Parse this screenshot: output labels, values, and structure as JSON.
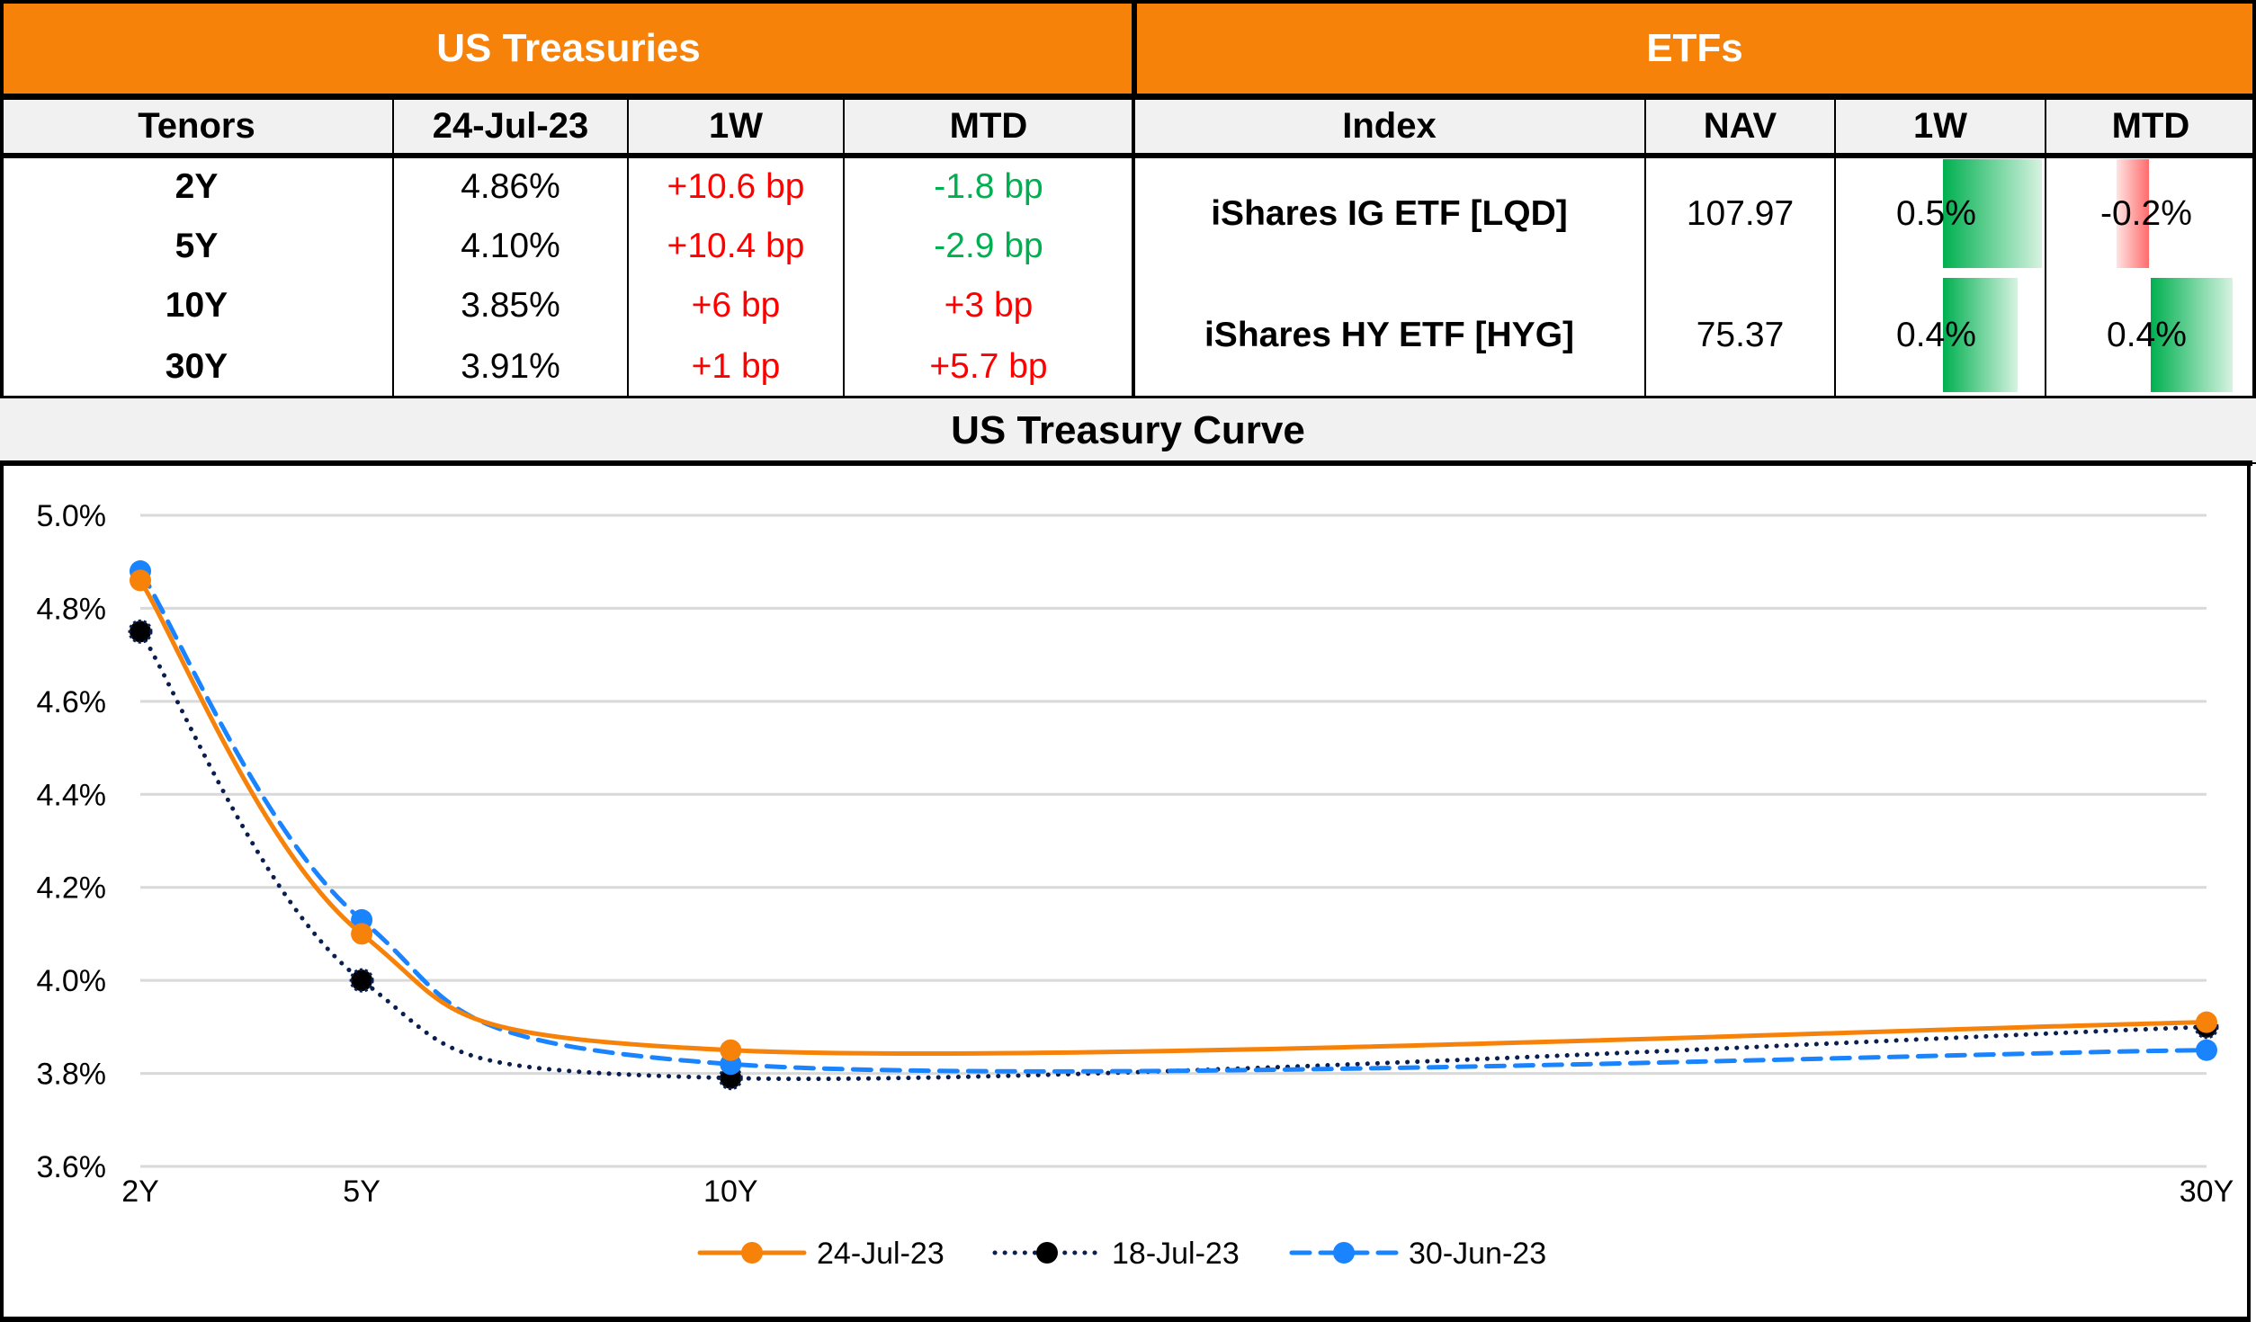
{
  "treasuries": {
    "title": "US Treasuries",
    "headers": [
      "Tenors",
      "24-Jul-23",
      "1W",
      "MTD"
    ],
    "rows": [
      {
        "tenor": "2Y",
        "yield": "4.86%",
        "w1": "+10.6 bp",
        "mtd": "-1.8 bp"
      },
      {
        "tenor": "5Y",
        "yield": "4.10%",
        "w1": "+10.4 bp",
        "mtd": "-2.9 bp"
      },
      {
        "tenor": "10Y",
        "yield": "3.85%",
        "w1": "+6 bp",
        "mtd": "+3 bp"
      },
      {
        "tenor": "30Y",
        "yield": "3.91%",
        "w1": "+1 bp",
        "mtd": "+5.7 bp"
      }
    ]
  },
  "etfs": {
    "title": "ETFs",
    "headers": [
      "Index",
      "NAV",
      "1W",
      "MTD"
    ],
    "rows": [
      {
        "index": "iShares IG ETF [LQD]",
        "nav": "107.97",
        "w1": "0.5%",
        "w1_value": 0.5,
        "mtd": "-0.2%",
        "mtd_value": -0.2
      },
      {
        "index": "iShares HY ETF [HYG]",
        "nav": "75.37",
        "w1": "0.4%",
        "w1_value": 0.4,
        "mtd": "0.4%",
        "mtd_value": 0.4
      }
    ]
  },
  "colors": {
    "header_orange": "#f7820a",
    "positive_red": "#ff0000",
    "negative_green": "#00b050",
    "series_24jul": "#f7820a",
    "series_18jul": "#0a1f4f",
    "series_30jun": "#1a84ff"
  },
  "chart_data": {
    "type": "line",
    "title": "US Treasury Curve",
    "xlabel": "",
    "ylabel": "",
    "x": [
      2,
      5,
      10,
      30
    ],
    "categories": [
      "2Y",
      "5Y",
      "10Y",
      "30Y"
    ],
    "ylim": [
      3.6,
      5.0
    ],
    "yticks": [
      "3.6%",
      "3.8%",
      "4.0%",
      "4.2%",
      "4.4%",
      "4.6%",
      "4.8%",
      "5.0%"
    ],
    "ytick_values": [
      3.6,
      3.8,
      4.0,
      4.2,
      4.4,
      4.6,
      4.8,
      5.0
    ],
    "grid": true,
    "legend": "bottom",
    "smooth": true,
    "series": [
      {
        "name": "24-Jul-23",
        "values": [
          4.86,
          4.1,
          3.85,
          3.91
        ],
        "style": "solid",
        "color": "#f7820a"
      },
      {
        "name": "18-Jul-23",
        "values": [
          4.75,
          4.0,
          3.79,
          3.9
        ],
        "style": "dotted",
        "color": "#0a1f4f"
      },
      {
        "name": "30-Jun-23",
        "values": [
          4.88,
          4.13,
          3.82,
          3.85
        ],
        "style": "dashed",
        "color": "#1a84ff"
      }
    ]
  }
}
